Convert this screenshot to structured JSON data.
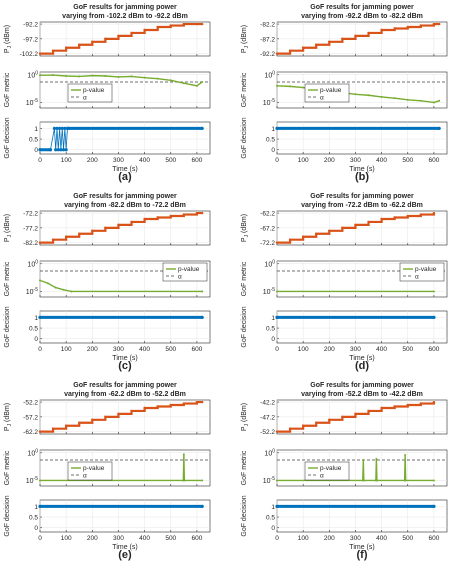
{
  "colors": {
    "power": "#d95319",
    "pvalue": "#77ac30",
    "alpha": "#404040",
    "decision": "#0072bd",
    "axis": "#262626",
    "grid": "#e6e6e6"
  },
  "chart_data": [
    {
      "panel_label": "(a)",
      "title_line1": "GoF results for jamming power",
      "title_line2": "varying from -102.2 dBm to -92.2 dBm",
      "xlabel": "Time (s)",
      "xlim": [
        0,
        650
      ],
      "xticks": [
        "0",
        "100",
        "200",
        "300",
        "400",
        "500",
        "600"
      ],
      "power": {
        "type": "line",
        "ylabel": "P_J (dBm)",
        "ylim": [
          -103,
          -91.5
        ],
        "yticks": [
          "-102.2",
          "-97.2",
          "-92.2"
        ],
        "x": [
          0,
          50,
          100,
          150,
          200,
          250,
          300,
          350,
          400,
          450,
          500,
          550,
          600,
          620
        ],
        "y": [
          -102.2,
          -101.2,
          -100.2,
          -99.2,
          -98.2,
          -97.2,
          -96.2,
          -95.2,
          -94.2,
          -93.2,
          -92.7,
          -92.2,
          -92.2,
          -92.2
        ]
      },
      "metric": {
        "type": "line",
        "ylabel": "GoF metric",
        "ylog": true,
        "yticks": [
          "10^0",
          "10^-5"
        ],
        "legend": [
          "p-value",
          "α"
        ],
        "legend_position": "center",
        "alpha": 0.05,
        "x": [
          0,
          50,
          100,
          150,
          200,
          250,
          300,
          350,
          400,
          450,
          500,
          550,
          600,
          620
        ],
        "y": [
          0.8,
          0.9,
          0.6,
          0.5,
          0.7,
          0.6,
          0.4,
          0.5,
          0.3,
          0.2,
          0.1,
          0.03,
          0.01,
          0.05
        ]
      },
      "decision": {
        "type": "scatter",
        "ylabel": "GoF decision",
        "ylim": [
          -0.2,
          1.3
        ],
        "yticks": [
          "0",
          "0.5",
          "1"
        ],
        "x": [
          0,
          40,
          55,
          60,
          65,
          70,
          75,
          80,
          85,
          90,
          95,
          100,
          105,
          110,
          620
        ],
        "y": [
          0,
          0,
          1,
          0,
          1,
          0,
          1,
          0,
          1,
          0,
          1,
          0,
          1,
          1,
          1
        ]
      }
    },
    {
      "panel_label": "(b)",
      "title_line1": "GoF results for jamming power",
      "title_line2": "varying from -92.2 dBm to -82.2 dBm",
      "xlabel": "Time (s)",
      "xlim": [
        0,
        650
      ],
      "xticks": [
        "0",
        "100",
        "200",
        "300",
        "400",
        "500",
        "600"
      ],
      "power": {
        "type": "line",
        "ylabel": "P_J (dBm)",
        "ylim": [
          -93,
          -81.5
        ],
        "yticks": [
          "-92.2",
          "-87.2",
          "-82.2"
        ],
        "x": [
          0,
          50,
          100,
          150,
          200,
          250,
          300,
          350,
          400,
          450,
          500,
          550,
          600,
          620
        ],
        "y": [
          -92.2,
          -91.2,
          -90.2,
          -89.2,
          -88.2,
          -87.2,
          -86.2,
          -85.2,
          -84.2,
          -83.7,
          -83.2,
          -82.7,
          -82.2,
          -82.2
        ]
      },
      "metric": {
        "type": "line",
        "ylabel": "GoF metric",
        "ylog": true,
        "yticks": [
          "10^0",
          "10^-5"
        ],
        "legend": [
          "p-value",
          "α"
        ],
        "legend_position": "center",
        "alpha": 0.05,
        "x": [
          0,
          50,
          100,
          150,
          200,
          250,
          300,
          350,
          400,
          450,
          500,
          550,
          600,
          620
        ],
        "y": [
          0.01,
          0.008,
          0.005,
          0.002,
          0.001,
          0.0006,
          0.0003,
          0.0002,
          0.0001,
          6e-05,
          3e-05,
          2e-05,
          1e-05,
          2e-05
        ]
      },
      "decision": {
        "type": "scatter",
        "ylabel": "GoF decision",
        "ylim": [
          -0.2,
          1.3
        ],
        "yticks": [
          "0",
          "0.5",
          "1"
        ],
        "x": [
          0,
          620
        ],
        "y": [
          1,
          1
        ]
      }
    },
    {
      "panel_label": "(c)",
      "title_line1": "GoF results for jamming power",
      "title_line2": "varying from -82.2 dBm to -72.2 dBm",
      "xlabel": "Time (s)",
      "xlim": [
        0,
        650
      ],
      "xticks": [
        "0",
        "100",
        "200",
        "300",
        "400",
        "500",
        "600"
      ],
      "power": {
        "type": "line",
        "ylabel": "P_J (dBm)",
        "ylim": [
          -83,
          -71.5
        ],
        "yticks": [
          "-82.2",
          "-77.2",
          "-72.2"
        ],
        "x": [
          0,
          50,
          100,
          150,
          200,
          250,
          300,
          350,
          400,
          450,
          500,
          550,
          600,
          620
        ],
        "y": [
          -82.2,
          -81.2,
          -80.2,
          -79.2,
          -78.2,
          -77.2,
          -76.2,
          -75.2,
          -74.2,
          -73.7,
          -73.2,
          -72.7,
          -72.2,
          -72.2
        ]
      },
      "metric": {
        "type": "line",
        "ylabel": "GoF metric",
        "ylog": true,
        "yticks": [
          "10^0",
          "10^-5"
        ],
        "legend": [
          "p-value",
          "α"
        ],
        "legend_position": "top-right",
        "alpha": 0.05,
        "x": [
          0,
          30,
          60,
          90,
          120,
          620
        ],
        "y": [
          0.001,
          0.0003,
          5e-05,
          2e-05,
          1e-05,
          1e-05
        ]
      },
      "decision": {
        "type": "scatter",
        "ylabel": "GoF decision",
        "ylim": [
          -0.2,
          1.3
        ],
        "yticks": [
          "0",
          "0.5",
          "1"
        ],
        "x": [
          0,
          620
        ],
        "y": [
          1,
          1
        ]
      }
    },
    {
      "panel_label": "(d)",
      "title_line1": "GoF results for jamming power",
      "title_line2": "varying from -72.2 dBm to -62.2 dBm",
      "xlabel": "Time (s)",
      "xlim": [
        0,
        650
      ],
      "xticks": [
        "0",
        "100",
        "200",
        "300",
        "400",
        "500",
        "600"
      ],
      "power": {
        "type": "line",
        "ylabel": "P_J (dBm)",
        "ylim": [
          -73,
          -61.5
        ],
        "yticks": [
          "-72.2",
          "-67.2",
          "-62.2"
        ],
        "x": [
          0,
          50,
          100,
          150,
          200,
          250,
          300,
          350,
          400,
          450,
          500,
          550,
          600
        ],
        "y": [
          -72.2,
          -71.2,
          -70.2,
          -69.2,
          -68.2,
          -67.2,
          -66.2,
          -65.2,
          -64.2,
          -63.7,
          -63.2,
          -62.7,
          -62.2
        ]
      },
      "metric": {
        "type": "line",
        "ylabel": "GoF metric",
        "ylog": true,
        "yticks": [
          "10^0",
          "10^-5"
        ],
        "legend": [
          "p-value",
          "α"
        ],
        "legend_position": "top-right",
        "alpha": 0.05,
        "x": [
          0,
          600
        ],
        "y": [
          1e-05,
          1e-05
        ]
      },
      "decision": {
        "type": "scatter",
        "ylabel": "GoF decision",
        "ylim": [
          -0.2,
          1.3
        ],
        "yticks": [
          "0",
          "0.5",
          "1"
        ],
        "x": [
          0,
          600
        ],
        "y": [
          1,
          1
        ]
      }
    },
    {
      "panel_label": "(e)",
      "title_line1": "GoF results for jamming power",
      "title_line2": "varying from -62.2 dBm to -52.2 dBm",
      "xlabel": "Time (s)",
      "xlim": [
        0,
        650
      ],
      "xticks": [
        "0",
        "100",
        "200",
        "300",
        "400",
        "500",
        "600"
      ],
      "power": {
        "type": "line",
        "ylabel": "P_J (dBm)",
        "ylim": [
          -63,
          -51.5
        ],
        "yticks": [
          "-62.2",
          "-57.2",
          "-52.2"
        ],
        "x": [
          0,
          50,
          100,
          150,
          200,
          250,
          300,
          350,
          400,
          450,
          500,
          550,
          600,
          620
        ],
        "y": [
          -62.2,
          -61.2,
          -60.2,
          -59.2,
          -58.2,
          -57.2,
          -56.2,
          -55.2,
          -54.2,
          -53.7,
          -53.2,
          -52.7,
          -52.2,
          -52.2
        ]
      },
      "metric": {
        "type": "line",
        "ylabel": "GoF metric",
        "ylog": true,
        "yticks": [
          "10^0",
          "10^-5"
        ],
        "legend": [
          "p-value",
          "α"
        ],
        "legend_position": "center",
        "alpha": 0.05,
        "x": [
          0,
          548,
          550,
          552,
          620
        ],
        "y": [
          1e-05,
          1e-05,
          0.5,
          1e-05,
          1e-05
        ]
      },
      "decision": {
        "type": "scatter",
        "ylabel": "GoF decision",
        "ylim": [
          -0.2,
          1.3
        ],
        "yticks": [
          "0",
          "0.5",
          "1"
        ],
        "x": [
          0,
          620
        ],
        "y": [
          1,
          1
        ]
      }
    },
    {
      "panel_label": "(f)",
      "title_line1": "GoF results for jamming power",
      "title_line2": "varying from -52.2 dBm to -42.2 dBm",
      "xlabel": "Time (s)",
      "xlim": [
        0,
        650
      ],
      "xticks": [
        "0",
        "100",
        "200",
        "300",
        "400",
        "500",
        "600"
      ],
      "power": {
        "type": "line",
        "ylabel": "P_J (dBm)",
        "ylim": [
          -53,
          -41.5
        ],
        "yticks": [
          "-52.2",
          "-47.2",
          "-42.2"
        ],
        "x": [
          0,
          50,
          100,
          150,
          200,
          250,
          300,
          350,
          400,
          450,
          500,
          550,
          600
        ],
        "y": [
          -52.2,
          -51.2,
          -50.2,
          -49.2,
          -48.2,
          -47.2,
          -46.2,
          -45.2,
          -44.2,
          -43.7,
          -43.2,
          -42.7,
          -42.2
        ]
      },
      "metric": {
        "type": "line",
        "ylabel": "GoF metric",
        "ylog": true,
        "yticks": [
          "10^0",
          "10^-5"
        ],
        "legend": [
          "p-value",
          "α"
        ],
        "legend_position": "center",
        "alpha": 0.05,
        "x": [
          0,
          328,
          330,
          332,
          378,
          380,
          382,
          488,
          490,
          492,
          600
        ],
        "y": [
          1e-05,
          1e-05,
          0.05,
          1e-05,
          1e-05,
          0.08,
          1e-05,
          1e-05,
          0.4,
          1e-05,
          1e-05
        ]
      },
      "decision": {
        "type": "scatter",
        "ylabel": "GoF decision",
        "ylim": [
          -0.2,
          1.3
        ],
        "yticks": [
          "0",
          "0.5",
          "1"
        ],
        "x": [
          0,
          600
        ],
        "y": [
          1,
          1
        ]
      }
    }
  ]
}
